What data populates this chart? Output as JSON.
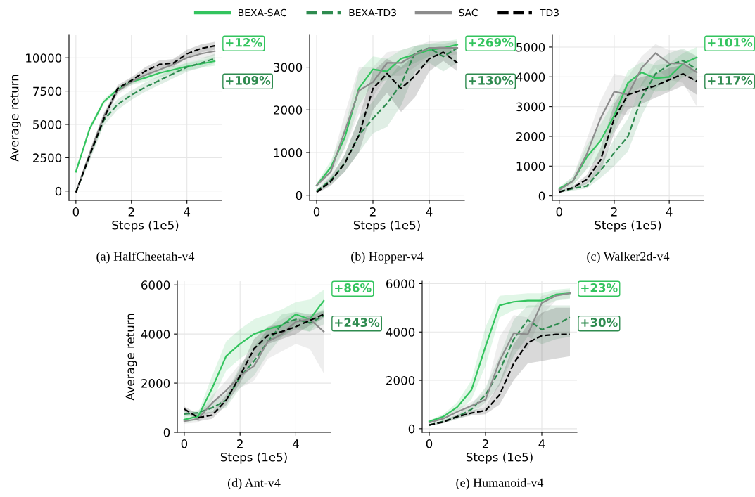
{
  "chart_data": [
    {
      "type": "line",
      "title": "(a) HalfCheetah-v4",
      "xlabel": "Steps (1e5)",
      "ylabel": "Average return",
      "legend": "top",
      "grid": true,
      "x": [
        0,
        0.5,
        1,
        1.5,
        2,
        2.5,
        3,
        3.5,
        4,
        4.5,
        5
      ],
      "xlim": [
        -0.25,
        5.25
      ],
      "xticks": [
        0,
        2,
        4
      ],
      "ylim": [
        -700,
        11700
      ],
      "yticks": [
        0,
        2500,
        5000,
        7500,
        10000
      ],
      "series": [
        {
          "name": "BEXA-SAC",
          "color": "#33c45e",
          "line_style": "solid",
          "values": [
            1450,
            4700,
            6700,
            7600,
            8200,
            8500,
            8850,
            9100,
            9350,
            9550,
            9750
          ],
          "lower": [
            1300,
            4500,
            6500,
            7400,
            7950,
            8200,
            8550,
            8800,
            9050,
            9250,
            9400
          ],
          "upper": [
            1600,
            4900,
            6900,
            7800,
            8400,
            8750,
            9100,
            9350,
            9600,
            9800,
            10050
          ]
        },
        {
          "name": "BEXA-TD3",
          "color": "#2e8b4f",
          "line_style": "dashed",
          "values": [
            -100,
            2700,
            5300,
            6500,
            7200,
            7800,
            8300,
            8800,
            9300,
            9600,
            9950
          ],
          "lower": [
            -200,
            2300,
            4900,
            6100,
            6850,
            7450,
            7950,
            8450,
            8950,
            9250,
            9600
          ],
          "upper": [
            0,
            3000,
            5700,
            6900,
            7550,
            8150,
            8650,
            9150,
            9650,
            9950,
            10300
          ]
        },
        {
          "name": "SAC",
          "color": "#8c8c8c",
          "line_style": "solid",
          "values": [
            -100,
            2800,
            5600,
            7500,
            8200,
            8700,
            9100,
            9500,
            10000,
            10300,
            10500
          ],
          "lower": [
            -200,
            2500,
            5300,
            7200,
            7950,
            8400,
            8800,
            9150,
            9650,
            9950,
            10150
          ],
          "upper": [
            0,
            3100,
            5900,
            7800,
            8450,
            9000,
            9400,
            9850,
            10350,
            10650,
            10850
          ]
        },
        {
          "name": "TD3",
          "color": "#000000",
          "line_style": "dashed",
          "values": [
            -100,
            2700,
            5400,
            7700,
            8300,
            9000,
            9500,
            9600,
            10300,
            10700,
            10900
          ],
          "lower": [
            -200,
            2400,
            5100,
            7450,
            8050,
            8700,
            9200,
            9300,
            10000,
            10400,
            10600
          ],
          "upper": [
            0,
            3000,
            5700,
            7950,
            8550,
            9300,
            9800,
            9900,
            10600,
            11000,
            11200
          ]
        }
      ],
      "annotations": [
        "+12%",
        "+109%"
      ]
    },
    {
      "type": "line",
      "title": "(b) Hopper-v4",
      "xlabel": "Steps (1e5)",
      "grid": true,
      "x": [
        0,
        0.5,
        1,
        1.5,
        2,
        2.5,
        3,
        3.5,
        4,
        4.5,
        5
      ],
      "xlim": [
        -0.25,
        5.25
      ],
      "xticks": [
        0,
        2,
        4
      ],
      "ylim": [
        -120,
        3750
      ],
      "yticks": [
        0,
        1000,
        2000,
        3000
      ],
      "series": [
        {
          "color": "#33c45e",
          "line_style": "solid",
          "values": [
            230,
            650,
            1350,
            2500,
            2950,
            2900,
            3200,
            3300,
            3400,
            3450,
            3530
          ],
          "lower": [
            180,
            500,
            1100,
            2100,
            2600,
            2700,
            2950,
            3100,
            3250,
            3300,
            3400
          ],
          "upper": [
            280,
            800,
            1600,
            2900,
            3250,
            3200,
            3400,
            3500,
            3550,
            3600,
            3650
          ]
        },
        {
          "color": "#2e8b4f",
          "line_style": "dashed",
          "values": [
            100,
            350,
            750,
            1400,
            1800,
            2150,
            2600,
            3350,
            3450,
            3250,
            3450
          ],
          "lower": [
            60,
            250,
            550,
            1000,
            1450,
            1600,
            2100,
            2900,
            3100,
            2900,
            3100
          ],
          "upper": [
            140,
            450,
            950,
            1800,
            2200,
            2700,
            3100,
            3500,
            3550,
            3550,
            3600
          ]
        },
        {
          "color": "#8c8c8c",
          "line_style": "solid",
          "values": [
            230,
            550,
            1500,
            2450,
            2650,
            3100,
            3100,
            3300,
            3450,
            3450,
            3450
          ],
          "lower": [
            180,
            400,
            1100,
            1900,
            2300,
            2800,
            2800,
            3000,
            3250,
            3250,
            3300
          ],
          "upper": [
            280,
            700,
            1900,
            3000,
            3000,
            3350,
            3400,
            3500,
            3600,
            3600,
            3600
          ]
        },
        {
          "color": "#000000",
          "line_style": "dashed",
          "values": [
            70,
            320,
            750,
            1400,
            2500,
            2850,
            2500,
            2800,
            3200,
            3350,
            3100
          ],
          "lower": [
            40,
            220,
            550,
            1000,
            2000,
            2400,
            1950,
            2300,
            2900,
            3150,
            2900
          ],
          "upper": [
            100,
            420,
            950,
            1800,
            2900,
            3200,
            3000,
            3300,
            3450,
            3500,
            3350
          ]
        }
      ],
      "annotations": [
        "+269%",
        "+130%"
      ]
    },
    {
      "type": "line",
      "title": "(c) Walker2d-v4",
      "xlabel": "Steps (1e5)",
      "grid": true,
      "x": [
        0,
        0.5,
        1,
        1.5,
        2,
        2.5,
        3,
        3.5,
        4,
        4.5,
        5
      ],
      "xlim": [
        -0.25,
        5.25
      ],
      "xticks": [
        0,
        2,
        4
      ],
      "ylim": [
        -150,
        5400
      ],
      "yticks": [
        0,
        1000,
        2000,
        3000,
        4000,
        5000
      ],
      "series": [
        {
          "color": "#33c45e",
          "line_style": "solid",
          "values": [
            250,
            500,
            1300,
            1850,
            2700,
            3800,
            4150,
            3950,
            4000,
            4450,
            4650
          ],
          "lower": [
            200,
            350,
            900,
            1300,
            2200,
            3300,
            3700,
            3500,
            3550,
            4000,
            4200
          ],
          "upper": [
            300,
            650,
            1700,
            2400,
            3200,
            4200,
            4500,
            4400,
            4450,
            4800,
            5000
          ]
        },
        {
          "color": "#2e8b4f",
          "line_style": "dashed",
          "values": [
            150,
            250,
            330,
            850,
            1450,
            2000,
            3300,
            4100,
            4400,
            4550,
            4250
          ],
          "lower": [
            100,
            180,
            250,
            600,
            1000,
            1500,
            2700,
            3600,
            3950,
            4100,
            3800
          ],
          "upper": [
            200,
            320,
            450,
            1100,
            1900,
            2600,
            3800,
            4500,
            4800,
            4950,
            4700
          ]
        },
        {
          "color": "#8c8c8c",
          "line_style": "solid",
          "values": [
            200,
            500,
            1400,
            2600,
            3500,
            3400,
            4300,
            4800,
            4450,
            4450,
            4150
          ],
          "lower": [
            150,
            350,
            900,
            1900,
            2800,
            2700,
            3700,
            4300,
            3900,
            3800,
            3000
          ],
          "upper": [
            250,
            650,
            1900,
            3200,
            4100,
            4000,
            4700,
            5100,
            4900,
            4900,
            4700
          ]
        },
        {
          "color": "#000000",
          "line_style": "dashed",
          "values": [
            130,
            280,
            550,
            1200,
            2600,
            3400,
            3550,
            3700,
            3900,
            4100,
            3850
          ],
          "lower": [
            100,
            220,
            400,
            800,
            2100,
            2900,
            3100,
            3300,
            3500,
            3700,
            3400
          ],
          "upper": [
            160,
            340,
            700,
            1600,
            3100,
            3800,
            4000,
            4100,
            4300,
            4400,
            4200
          ]
        }
      ],
      "annotations": [
        "+101%",
        "+117%"
      ]
    },
    {
      "type": "line",
      "title": "(d) Ant-v4",
      "xlabel": "Steps (1e5)",
      "ylabel": "Average return",
      "grid": true,
      "x": [
        0,
        0.5,
        1,
        1.5,
        2,
        2.5,
        3,
        3.5,
        4,
        4.5,
        5
      ],
      "xlim": [
        -0.25,
        5.25
      ],
      "xticks": [
        0,
        2,
        4
      ],
      "ylim": [
        0,
        6150
      ],
      "yticks": [
        0,
        2000,
        4000,
        6000
      ],
      "series": [
        {
          "color": "#33c45e",
          "line_style": "solid",
          "values": [
            520,
            650,
            1800,
            3100,
            3600,
            4000,
            4200,
            4350,
            4800,
            4600,
            5350
          ],
          "lower": [
            400,
            500,
            1300,
            2500,
            3000,
            3400,
            3700,
            3900,
            4300,
            4100,
            4800
          ],
          "upper": [
            650,
            800,
            2300,
            3700,
            4200,
            4600,
            4800,
            5000,
            5300,
            5400,
            5800
          ]
        },
        {
          "color": "#2e8b4f",
          "line_style": "dashed",
          "values": [
            750,
            800,
            1000,
            1300,
            2250,
            2900,
            3700,
            4400,
            4600,
            4450,
            4750
          ],
          "lower": [
            650,
            700,
            800,
            1000,
            1800,
            2300,
            3200,
            3900,
            4200,
            4100,
            4400
          ],
          "upper": [
            850,
            900,
            1200,
            1600,
            2700,
            3500,
            4200,
            4800,
            4900,
            4800,
            5000
          ]
        },
        {
          "color": "#8c8c8c",
          "line_style": "solid",
          "values": [
            450,
            550,
            1200,
            1700,
            2300,
            2700,
            3700,
            4000,
            4500,
            4600,
            4100
          ],
          "lower": [
            350,
            400,
            900,
            1300,
            1800,
            2100,
            3000,
            3300,
            3600,
            3400,
            2400
          ],
          "upper": [
            550,
            700,
            1500,
            2100,
            2800,
            3300,
            4300,
            4600,
            4900,
            4800,
            4900
          ]
        },
        {
          "color": "#000000",
          "line_style": "dashed",
          "values": [
            950,
            600,
            700,
            1300,
            2300,
            3400,
            3950,
            4100,
            4300,
            4550,
            4800
          ],
          "lower": [
            850,
            450,
            550,
            1100,
            2000,
            3000,
            3600,
            3800,
            4000,
            4350,
            4650
          ],
          "upper": [
            1050,
            750,
            850,
            1500,
            2600,
            3800,
            4300,
            4400,
            4600,
            4750,
            4950
          ]
        }
      ],
      "annotations": [
        "+86%",
        "+243%"
      ]
    },
    {
      "type": "line",
      "title": "(e) Humanoid-v4",
      "xlabel": "Steps (1e5)",
      "grid": true,
      "x": [
        0,
        0.5,
        1,
        1.5,
        2,
        2.5,
        3,
        3.5,
        4,
        4.5,
        5
      ],
      "xlim": [
        -0.25,
        5.25
      ],
      "xticks": [
        0,
        2,
        4
      ],
      "ylim": [
        -150,
        6100
      ],
      "yticks": [
        0,
        2000,
        4000,
        6000
      ],
      "series": [
        {
          "color": "#33c45e",
          "line_style": "solid",
          "values": [
            300,
            500,
            900,
            1600,
            3400,
            5100,
            5250,
            5300,
            5300,
            5550,
            5600
          ],
          "lower": [
            250,
            400,
            700,
            1200,
            2600,
            4600,
            4900,
            5000,
            5050,
            5300,
            5350
          ],
          "upper": [
            350,
            600,
            1100,
            2000,
            4200,
            5500,
            5550,
            5600,
            5600,
            5750,
            5800
          ]
        },
        {
          "color": "#2e8b4f",
          "line_style": "dashed",
          "values": [
            150,
            300,
            500,
            800,
            1400,
            2400,
            3700,
            4500,
            4100,
            4300,
            4600
          ],
          "lower": [
            120,
            230,
            400,
            600,
            1100,
            1800,
            3000,
            3800,
            3500,
            3700,
            3800
          ],
          "upper": [
            180,
            370,
            600,
            1000,
            1700,
            3000,
            4500,
            5100,
            5100,
            5100,
            5100
          ]
        },
        {
          "color": "#8c8c8c",
          "line_style": "solid",
          "values": [
            250,
            420,
            700,
            950,
            1200,
            2800,
            3950,
            3900,
            5200,
            5500,
            5600
          ],
          "lower": [
            200,
            350,
            550,
            800,
            900,
            1800,
            3300,
            3300,
            4700,
            5300,
            5400
          ],
          "upper": [
            300,
            500,
            850,
            1100,
            1500,
            3800,
            4700,
            4600,
            5500,
            5650,
            5750
          ]
        },
        {
          "color": "#000000",
          "line_style": "dashed",
          "values": [
            150,
            280,
            500,
            650,
            750,
            1400,
            2700,
            3550,
            3850,
            3900,
            3900
          ],
          "lower": [
            120,
            230,
            420,
            550,
            600,
            1000,
            2000,
            2700,
            2800,
            2900,
            3000
          ],
          "upper": [
            180,
            330,
            580,
            750,
            900,
            1900,
            3500,
            4300,
            4800,
            5000,
            5000
          ]
        }
      ],
      "annotations": [
        "+23%",
        "+30%"
      ]
    }
  ]
}
